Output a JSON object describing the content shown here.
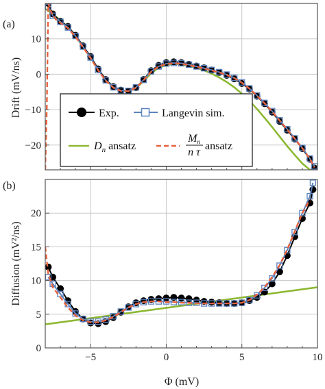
{
  "chart_data": [
    {
      "panel_label": "(a)",
      "type": "line",
      "ylabel": "Drift (mV/ns)",
      "xlim": [
        -8,
        10
      ],
      "ylim": [
        -27,
        20
      ],
      "xticks": [
        -5,
        0,
        5,
        10
      ],
      "yticks": [
        -20,
        -10,
        0,
        10
      ],
      "ytick_labels": [
        "−20",
        "−10",
        "0",
        "10"
      ],
      "grid": true,
      "legend": {
        "placement": "lower-center",
        "entries": [
          {
            "label": "Exp.",
            "style": "black line with filled circles",
            "color": "#000000"
          },
          {
            "label": "Langevin sim.",
            "style": "blue line with open squares",
            "color": "#5b82bf"
          },
          {
            "label": "D",
            "sub": "n",
            "suffix": " ansatz",
            "style": "green solid line",
            "color": "#8db832"
          },
          {
            "frac_num": "M",
            "frac_num_sub": "n",
            "frac_den": "n τ",
            "suffix": " ansatz",
            "style": "orange dashed line",
            "color": "#e8613c"
          }
        ]
      },
      "series": [
        {
          "name": "Exp.",
          "color": "#000000",
          "x": [
            -7.8,
            -7.5,
            -7,
            -6.5,
            -6,
            -5.5,
            -5,
            -4.5,
            -4,
            -3.5,
            -3,
            -2.5,
            -2,
            -1.5,
            -1,
            -0.5,
            0,
            0.5,
            1,
            1.5,
            2,
            2.5,
            3,
            3.5,
            4,
            4.5,
            5,
            5.5,
            6,
            6.5,
            7,
            7.5,
            8,
            8.5,
            9,
            9.5,
            9.8
          ],
          "y": [
            20,
            17,
            15,
            13.5,
            11,
            8,
            5,
            1.5,
            -1.5,
            -3.5,
            -4.5,
            -4.8,
            -3.8,
            -1.5,
            1,
            2.5,
            3.3,
            3.5,
            3.3,
            2.8,
            2.3,
            1.8,
            1.2,
            0.5,
            -0.3,
            -1.3,
            -2.6,
            -4.2,
            -6.2,
            -8.3,
            -10.7,
            -13.3,
            -15.8,
            -18.3,
            -21,
            -24,
            -26.5
          ]
        },
        {
          "name": "Langevin sim.",
          "color": "#5b82bf",
          "x": [
            -7.8,
            -7.5,
            -7,
            -6.5,
            -6,
            -5.5,
            -5,
            -4.5,
            -4,
            -3.5,
            -3,
            -2.5,
            -2,
            -1.5,
            -1,
            -0.5,
            0,
            0.5,
            1,
            1.5,
            2,
            2.5,
            3,
            3.5,
            4,
            4.5,
            5,
            5.5,
            6,
            6.5,
            7,
            7.5,
            8,
            8.5,
            9,
            9.5,
            9.8
          ],
          "y": [
            19,
            16.5,
            14.8,
            13.2,
            10.8,
            7.8,
            4.7,
            1.2,
            -1.7,
            -3.7,
            -4.6,
            -4.7,
            -3.7,
            -1.6,
            0.8,
            2.2,
            3,
            3.2,
            3.1,
            2.7,
            2.2,
            1.7,
            1.2,
            0.6,
            -0.1,
            -1,
            -2.3,
            -4,
            -6,
            -8.1,
            -10.4,
            -13,
            -15.5,
            -18.1,
            -20.8,
            -23.8,
            -26
          ]
        },
        {
          "name": "D_n ansatz",
          "color": "#8db832",
          "x": [
            -8,
            -7.5,
            -7,
            -6.5,
            -6,
            -5.5,
            -5,
            -4.5,
            -4,
            -3.5,
            -3,
            -2.5,
            -2,
            -1.5,
            -1,
            -0.5,
            0,
            0.5,
            1,
            1.5,
            2,
            2.5,
            3,
            3.5,
            4,
            4.5,
            5,
            5.5,
            6,
            6.5,
            7,
            7.5,
            8,
            8.5,
            9,
            9.5,
            9.8
          ],
          "y": [
            18.5,
            17,
            15.2,
            13.3,
            10.8,
            7.8,
            4.6,
            1.4,
            -1.5,
            -3.6,
            -4.7,
            -4.8,
            -3.9,
            -2,
            0.3,
            1.8,
            2.6,
            2.9,
            2.8,
            2.4,
            1.8,
            1.1,
            0.2,
            -0.9,
            -2.2,
            -3.7,
            -5.5,
            -7.5,
            -9.8,
            -12.3,
            -14.9,
            -17.6,
            -20.3,
            -22.8,
            -25.2,
            -27,
            -27
          ]
        },
        {
          "name": "M_n/(n tau) ansatz",
          "color": "#e8613c",
          "x": [
            -8,
            -7.9,
            -7.8,
            -7.6,
            -7.3,
            -7,
            -6.5,
            -6,
            -5.5,
            -5,
            -4.5,
            -4,
            -3.5,
            -3,
            -2.5,
            -2,
            -1.5,
            -1,
            -0.5,
            0,
            0.5,
            1,
            1.5,
            2,
            2.5,
            3,
            3.5,
            4,
            4.5,
            5,
            5.5,
            6,
            6.5,
            7,
            7.5,
            8,
            8.5,
            9,
            9.5,
            9.8
          ],
          "y": [
            -27,
            -10,
            20,
            17.5,
            15.5,
            14.5,
            13,
            10.6,
            7.6,
            4.5,
            1.1,
            -1.8,
            -3.8,
            -4.7,
            -4.8,
            -3.8,
            -1.7,
            0.7,
            2.2,
            2.9,
            3.1,
            3,
            2.6,
            2.1,
            1.6,
            1.1,
            0.5,
            -0.2,
            -1.1,
            -2.4,
            -4.1,
            -6.1,
            -8.2,
            -10.5,
            -13.1,
            -15.6,
            -18.2,
            -20.9,
            -23.9,
            -26.3
          ]
        }
      ]
    },
    {
      "panel_label": "(b)",
      "type": "line",
      "xlabel": "Φ (mV)",
      "ylabel": "Diffusion (mV²/ns)",
      "xlim": [
        -8,
        10
      ],
      "ylim": [
        0,
        25
      ],
      "xticks": [
        -5,
        0,
        5,
        10
      ],
      "xtick_labels": [
        "−5",
        "0",
        "5",
        "10"
      ],
      "yticks": [
        0,
        5,
        10,
        15,
        20
      ],
      "grid": true,
      "series": [
        {
          "name": "Exp.",
          "color": "#000000",
          "x": [
            -7.8,
            -7.5,
            -7,
            -6.5,
            -6,
            -5.5,
            -5,
            -4.5,
            -4,
            -3.5,
            -3,
            -2.5,
            -2,
            -1.5,
            -1,
            -0.5,
            0,
            0.5,
            1,
            1.5,
            2,
            2.5,
            3,
            3.5,
            4,
            4.5,
            5,
            5.5,
            6,
            6.5,
            7,
            7.5,
            8,
            8.5,
            9,
            9.5,
            9.7
          ],
          "y": [
            12,
            10.5,
            8.8,
            7,
            5.4,
            4.3,
            3.7,
            3.6,
            3.9,
            4.5,
            5.3,
            6.1,
            6.7,
            7,
            7.2,
            7.3,
            7.4,
            7.5,
            7.4,
            7.3,
            7.1,
            6.9,
            6.8,
            6.7,
            6.6,
            6.6,
            6.7,
            7,
            7.5,
            8.3,
            9.5,
            11.3,
            13.7,
            16.5,
            19.2,
            21.5,
            23.5
          ]
        },
        {
          "name": "Langevin sim.",
          "color": "#5b82bf",
          "x": [
            -7.8,
            -7.5,
            -7,
            -6.5,
            -6,
            -5.5,
            -5,
            -4.5,
            -4,
            -3.5,
            -3,
            -2.5,
            -2,
            -1.5,
            -1,
            -0.5,
            0,
            0.5,
            1,
            1.5,
            2,
            2.5,
            3,
            3.5,
            4,
            4.5,
            5,
            5.5,
            6,
            6.5,
            7,
            7.5,
            8,
            8.5,
            9,
            9.5,
            9.7
          ],
          "y": [
            10.5,
            9.5,
            8,
            6.5,
            5.1,
            4.3,
            3.9,
            3.9,
            4.2,
            4.7,
            5.4,
            6,
            6.5,
            6.8,
            6.9,
            6.9,
            6.9,
            6.8,
            6.8,
            6.7,
            6.7,
            6.6,
            6.6,
            6.6,
            6.6,
            6.6,
            6.7,
            7.1,
            7.8,
            8.9,
            10.3,
            12.2,
            14.5,
            17.2,
            20,
            22.5,
            24.5
          ]
        },
        {
          "name": "D_n ansatz",
          "color": "#8db832",
          "x": [
            -8,
            10
          ],
          "y": [
            3.5,
            9
          ]
        },
        {
          "name": "M_n/(n tau) ansatz",
          "color": "#e8613c",
          "x": [
            -8,
            -7.8,
            -7.5,
            -7,
            -6.5,
            -6,
            -5.5,
            -5,
            -4.5,
            -4,
            -3.5,
            -3,
            -2.5,
            -2,
            -1.5,
            -1,
            -0.5,
            0,
            0.5,
            1,
            1.5,
            2,
            2.5,
            3,
            3.5,
            4,
            4.5,
            5,
            5.5,
            6,
            6.5,
            7,
            7.5,
            8,
            8.5,
            9,
            9.5
          ],
          "y": [
            15,
            11,
            9,
            7.5,
            6,
            4.8,
            4.1,
            3.8,
            3.8,
            4.1,
            4.6,
            5.3,
            6,
            6.5,
            6.8,
            6.9,
            6.9,
            6.8,
            6.8,
            6.7,
            6.7,
            6.6,
            6.6,
            6.6,
            6.6,
            6.6,
            6.6,
            6.7,
            7.1,
            7.9,
            9,
            10.5,
            12.3,
            14.6,
            17.3,
            20,
            22
          ]
        }
      ]
    }
  ]
}
